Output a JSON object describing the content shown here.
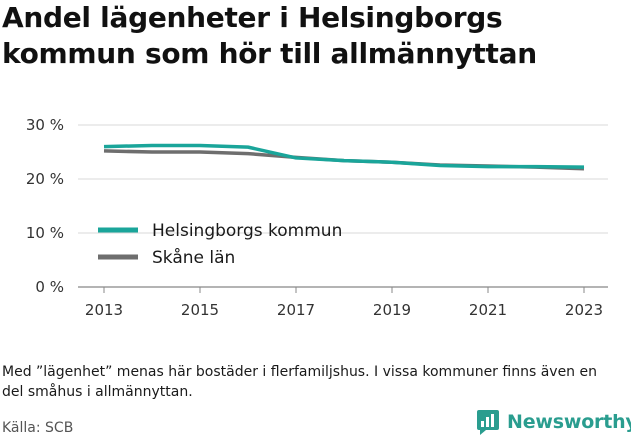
{
  "title": "Andel lägenheter i Helsingborgs kommun som hör till allmännyttan",
  "note": "Med ”lägenhet” menas här bostäder i flerfamiljshus. I vissa kommuner finns även en del småhus i allmännyttan.",
  "source": "Källa: SCB",
  "brand": "Newsworthy",
  "colors": {
    "kommun": "#1aa59a",
    "lan": "#6e6e6e",
    "brand": "#2a9d8f"
  },
  "chart_data": {
    "type": "line",
    "x": [
      2013,
      2014,
      2015,
      2016,
      2017,
      2018,
      2019,
      2020,
      2021,
      2022,
      2023
    ],
    "xticks": [
      "2013",
      "2015",
      "2017",
      "2019",
      "2021",
      "2023"
    ],
    "yticks": [
      "0 %",
      "10 %",
      "20 %",
      "30 %"
    ],
    "ylim": [
      0,
      30
    ],
    "grid": true,
    "legend_placement": "left-middle",
    "series": [
      {
        "name": "Helsingborgs kommun",
        "color": "#1aa59a",
        "values": [
          26.0,
          26.2,
          26.2,
          25.9,
          23.9,
          23.4,
          23.1,
          22.5,
          22.3,
          22.3,
          22.2
        ]
      },
      {
        "name": "Skåne län",
        "color": "#6e6e6e",
        "values": [
          25.2,
          25.0,
          25.0,
          24.7,
          24.0,
          23.4,
          23.1,
          22.6,
          22.4,
          22.2,
          21.9
        ]
      }
    ]
  }
}
